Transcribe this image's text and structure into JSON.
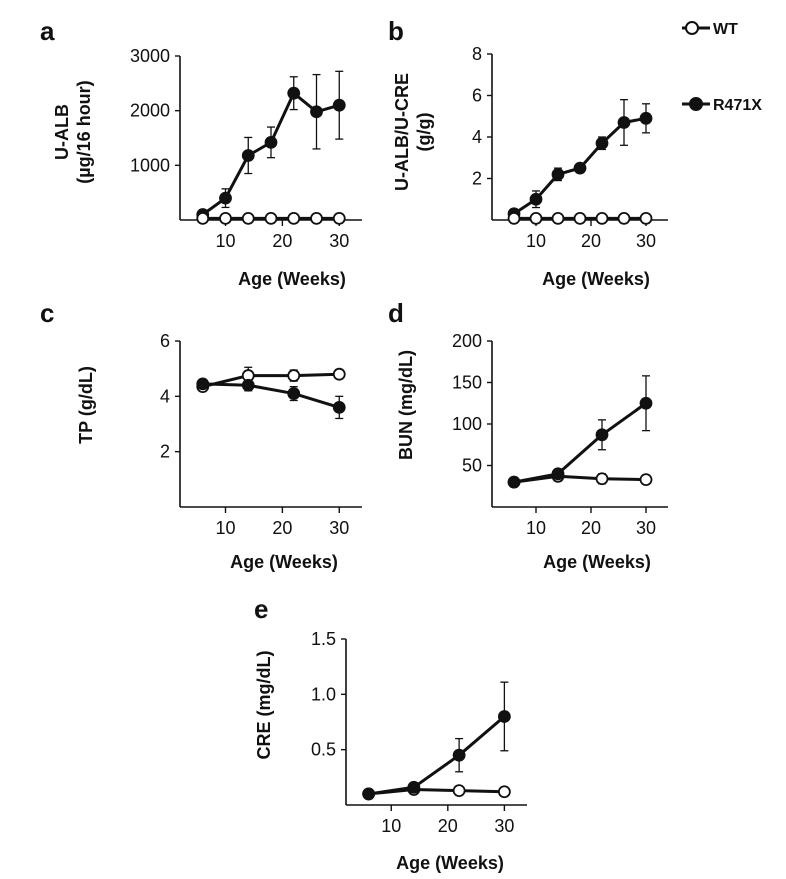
{
  "legend": {
    "items": [
      {
        "label": "WT",
        "marker": "open-circle"
      },
      {
        "label": "R471X",
        "marker": "filled-circle"
      }
    ]
  },
  "colors": {
    "line": "#111111",
    "open_fill": "#ffffff",
    "filled_fill": "#111111"
  },
  "chart_data": [
    {
      "panel": "a",
      "type": "line",
      "xlabel": "Age (Weeks)",
      "ylabel_lines": [
        "U-ALB",
        "(µg/16 hour)"
      ],
      "xlim": [
        2,
        34
      ],
      "ylim": [
        0,
        3000
      ],
      "xticks": [
        10,
        20,
        30
      ],
      "yticks": [
        1000,
        2000,
        3000
      ],
      "xtick_labels": [
        "10",
        "20",
        "30"
      ],
      "ytick_labels": [
        "1000",
        "2000",
        "3000"
      ],
      "series": [
        {
          "name": "R471X",
          "marker": "filled",
          "x": [
            6,
            10,
            14,
            18,
            22,
            26,
            30
          ],
          "y": [
            100,
            400,
            1180,
            1420,
            2320,
            1980,
            2100
          ],
          "err": [
            40,
            170,
            330,
            280,
            300,
            680,
            620
          ]
        },
        {
          "name": "WT",
          "marker": "open",
          "x": [
            6,
            10,
            14,
            18,
            22,
            26,
            30
          ],
          "y": [
            30,
            30,
            30,
            30,
            30,
            30,
            30
          ],
          "err": [
            0,
            0,
            0,
            0,
            0,
            0,
            0
          ]
        }
      ]
    },
    {
      "panel": "b",
      "type": "line",
      "xlabel": "Age (Weeks)",
      "ylabel_lines": [
        "U-ALB/U-CRE",
        "(g/g)"
      ],
      "xlim": [
        2,
        34
      ],
      "ylim": [
        0,
        8
      ],
      "xticks": [
        10,
        20,
        30
      ],
      "yticks": [
        2,
        4,
        6,
        8
      ],
      "xtick_labels": [
        "10",
        "20",
        "30"
      ],
      "ytick_labels": [
        "2",
        "4",
        "6",
        "8"
      ],
      "series": [
        {
          "name": "R471X",
          "marker": "filled",
          "x": [
            6,
            10,
            14,
            18,
            22,
            26,
            30
          ],
          "y": [
            0.3,
            1.0,
            2.2,
            2.5,
            3.7,
            4.7,
            4.9
          ],
          "err": [
            0.1,
            0.4,
            0.3,
            0.2,
            0.3,
            1.1,
            0.7
          ]
        },
        {
          "name": "WT",
          "marker": "open",
          "x": [
            6,
            10,
            14,
            18,
            22,
            26,
            30
          ],
          "y": [
            0.08,
            0.08,
            0.08,
            0.08,
            0.08,
            0.08,
            0.08
          ],
          "err": [
            0,
            0,
            0,
            0,
            0,
            0,
            0
          ]
        }
      ]
    },
    {
      "panel": "c",
      "type": "line",
      "xlabel": "Age (Weeks)",
      "ylabel_lines": [
        "TP (g/dL)"
      ],
      "xlim": [
        2,
        34
      ],
      "ylim": [
        0,
        6
      ],
      "xticks": [
        10,
        20,
        30
      ],
      "yticks": [
        2,
        4,
        6
      ],
      "xtick_labels": [
        "10",
        "20",
        "30"
      ],
      "ytick_labels": [
        "2",
        "4",
        "6"
      ],
      "series": [
        {
          "name": "WT",
          "marker": "open",
          "x": [
            6,
            14,
            22,
            30
          ],
          "y": [
            4.35,
            4.75,
            4.75,
            4.8
          ],
          "err": [
            0.15,
            0.3,
            0.2,
            0.15
          ]
        },
        {
          "name": "R471X",
          "marker": "filled",
          "x": [
            6,
            14,
            22,
            30
          ],
          "y": [
            4.45,
            4.4,
            4.1,
            3.6
          ],
          "err": [
            0.1,
            0.2,
            0.25,
            0.4
          ]
        }
      ]
    },
    {
      "panel": "d",
      "type": "line",
      "xlabel": "Age (Weeks)",
      "ylabel_lines": [
        "BUN (mg/dL)"
      ],
      "xlim": [
        2,
        34
      ],
      "ylim": [
        0,
        200
      ],
      "xticks": [
        10,
        20,
        30
      ],
      "yticks": [
        50,
        100,
        150,
        200
      ],
      "xtick_labels": [
        "10",
        "20",
        "30"
      ],
      "ytick_labels": [
        "50",
        "100",
        "150",
        "200"
      ],
      "series": [
        {
          "name": "WT",
          "marker": "open",
          "x": [
            6,
            14,
            22,
            30
          ],
          "y": [
            30,
            37,
            34,
            33
          ],
          "err": [
            2,
            3,
            6,
            2
          ]
        },
        {
          "name": "R471X",
          "marker": "filled",
          "x": [
            6,
            14,
            22,
            30
          ],
          "y": [
            30,
            40,
            87,
            125
          ],
          "err": [
            2,
            3,
            18,
            33
          ]
        }
      ]
    },
    {
      "panel": "e",
      "type": "line",
      "xlabel": "Age (Weeks)",
      "ylabel_lines": [
        "CRE (mg/dL)"
      ],
      "xlim": [
        2,
        34
      ],
      "ylim": [
        0,
        1.5
      ],
      "xticks": [
        10,
        20,
        30
      ],
      "yticks": [
        0.5,
        1.0,
        1.5
      ],
      "xtick_labels": [
        "10",
        "20",
        "30"
      ],
      "ytick_labels": [
        "0.5",
        "1.0",
        "1.5"
      ],
      "series": [
        {
          "name": "WT",
          "marker": "open",
          "x": [
            6,
            14,
            22,
            30
          ],
          "y": [
            0.1,
            0.14,
            0.13,
            0.12
          ],
          "err": [
            0.01,
            0.02,
            0.02,
            0.02
          ]
        },
        {
          "name": "R471X",
          "marker": "filled",
          "x": [
            6,
            14,
            22,
            30
          ],
          "y": [
            0.1,
            0.16,
            0.45,
            0.8
          ],
          "err": [
            0.02,
            0.03,
            0.15,
            0.31
          ]
        }
      ]
    }
  ]
}
